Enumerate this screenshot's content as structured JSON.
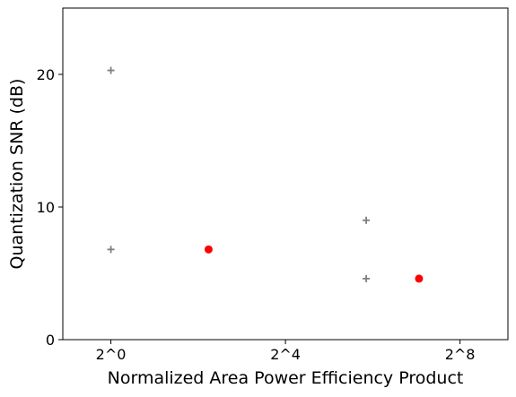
{
  "chart_data": {
    "type": "scatter",
    "xlabel": "Normalized Area Power Efficiency Product",
    "ylabel": "Quantization SNR (dB)",
    "x_scale": "log2",
    "x_ticks": [
      {
        "value": 1,
        "label": "2^0"
      },
      {
        "value": 16,
        "label": "2^4"
      },
      {
        "value": 256,
        "label": "2^8"
      }
    ],
    "y_ticks": [
      {
        "value": 0,
        "label": "0"
      },
      {
        "value": 10,
        "label": "10"
      },
      {
        "value": 20,
        "label": "20"
      }
    ],
    "xlim": [
      0.466,
      548
    ],
    "ylim": [
      0,
      25
    ],
    "grid": false,
    "series": [
      {
        "marker": "plus",
        "color": "#7f7f7f",
        "points": [
          {
            "x": 1.0,
            "y": 20.3
          },
          {
            "x": 1.0,
            "y": 6.8
          },
          {
            "x": 57.7,
            "y": 9.0
          },
          {
            "x": 57.7,
            "y": 4.6
          }
        ]
      },
      {
        "marker": "circle",
        "color": "#ff0000",
        "points": [
          {
            "x": 4.72,
            "y": 6.8
          },
          {
            "x": 133.5,
            "y": 4.6
          }
        ]
      }
    ]
  }
}
